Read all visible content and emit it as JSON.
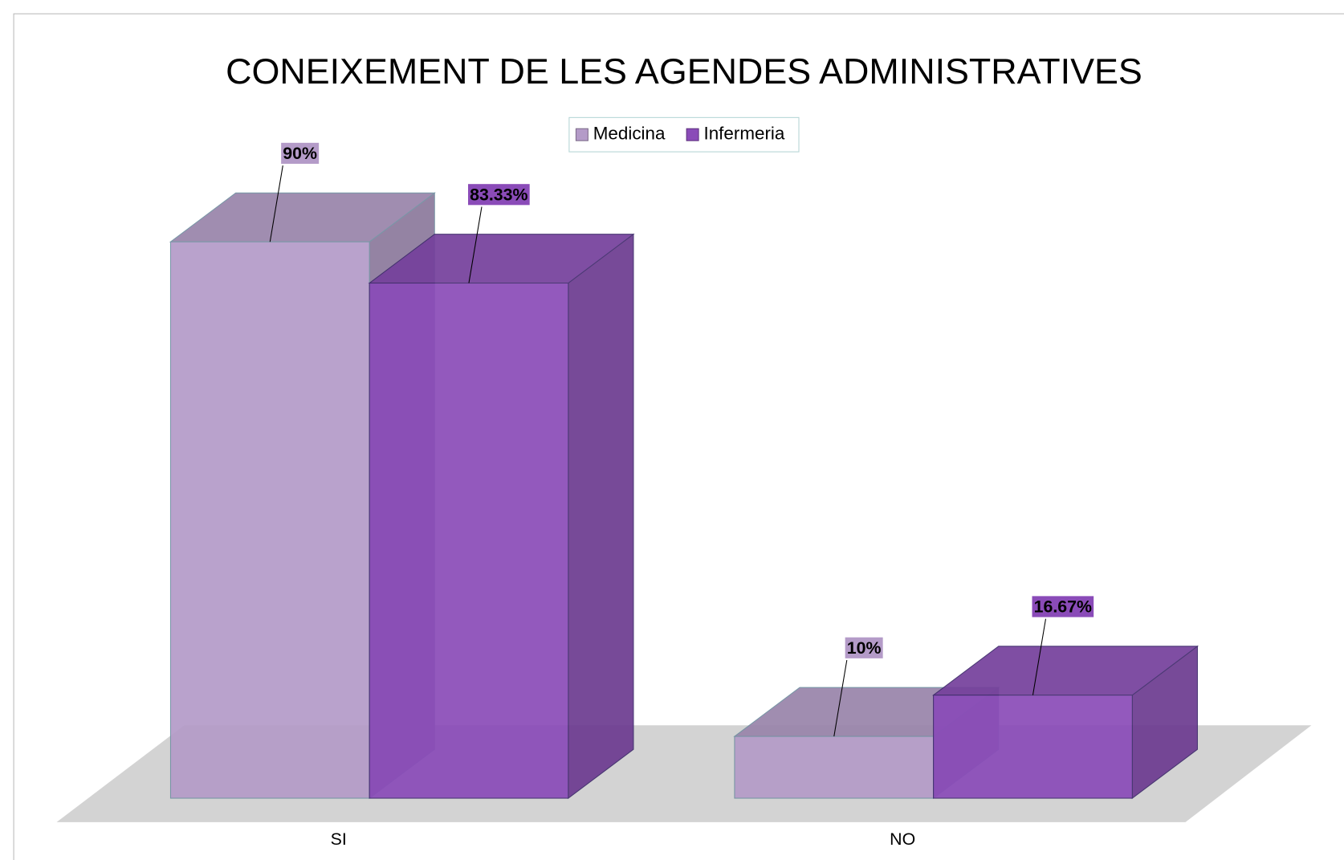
{
  "chart_data": {
    "type": "bar",
    "title": "CONEIXEMENT DE LES AGENDES ADMINISTRATIVES",
    "categories": [
      "SI",
      "NO"
    ],
    "series": [
      {
        "name": "Medicina",
        "color": "#b49bc8",
        "values": [
          90,
          10
        ],
        "value_labels": [
          "90%",
          "10%"
        ]
      },
      {
        "name": "Infermeria",
        "color": "#8a4bb8",
        "values": [
          83.33,
          16.67
        ],
        "value_labels": [
          "83.33%",
          "16.67%"
        ]
      }
    ],
    "legend": "top"
  }
}
